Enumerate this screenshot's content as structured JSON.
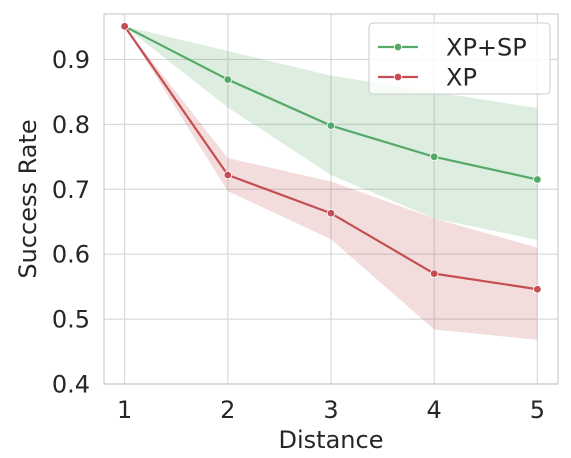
{
  "chart_data": {
    "type": "line",
    "xlabel": "Distance",
    "ylabel": "Success Rate",
    "x": [
      1,
      2,
      3,
      4,
      5
    ],
    "xticks": [
      "1",
      "2",
      "3",
      "4",
      "5"
    ],
    "xlim": [
      0.8,
      5.2
    ],
    "ylim": [
      0.4,
      0.97
    ],
    "yticks": [
      "0.4",
      "0.5",
      "0.6",
      "0.7",
      "0.8",
      "0.9"
    ],
    "grid": true,
    "legend_position": "top-right",
    "series": [
      {
        "name": "XP+SP",
        "color": "#55a868",
        "values": [
          0.951,
          0.869,
          0.798,
          0.75,
          0.715
        ],
        "lower": [
          0.951,
          0.826,
          0.722,
          0.655,
          0.622
        ],
        "upper": [
          0.951,
          0.913,
          0.875,
          0.85,
          0.825
        ]
      },
      {
        "name": "XP",
        "color": "#c44e52",
        "values": [
          0.951,
          0.722,
          0.663,
          0.57,
          0.546
        ],
        "lower": [
          0.951,
          0.697,
          0.623,
          0.484,
          0.468
        ],
        "upper": [
          0.951,
          0.748,
          0.712,
          0.655,
          0.61
        ]
      }
    ]
  }
}
